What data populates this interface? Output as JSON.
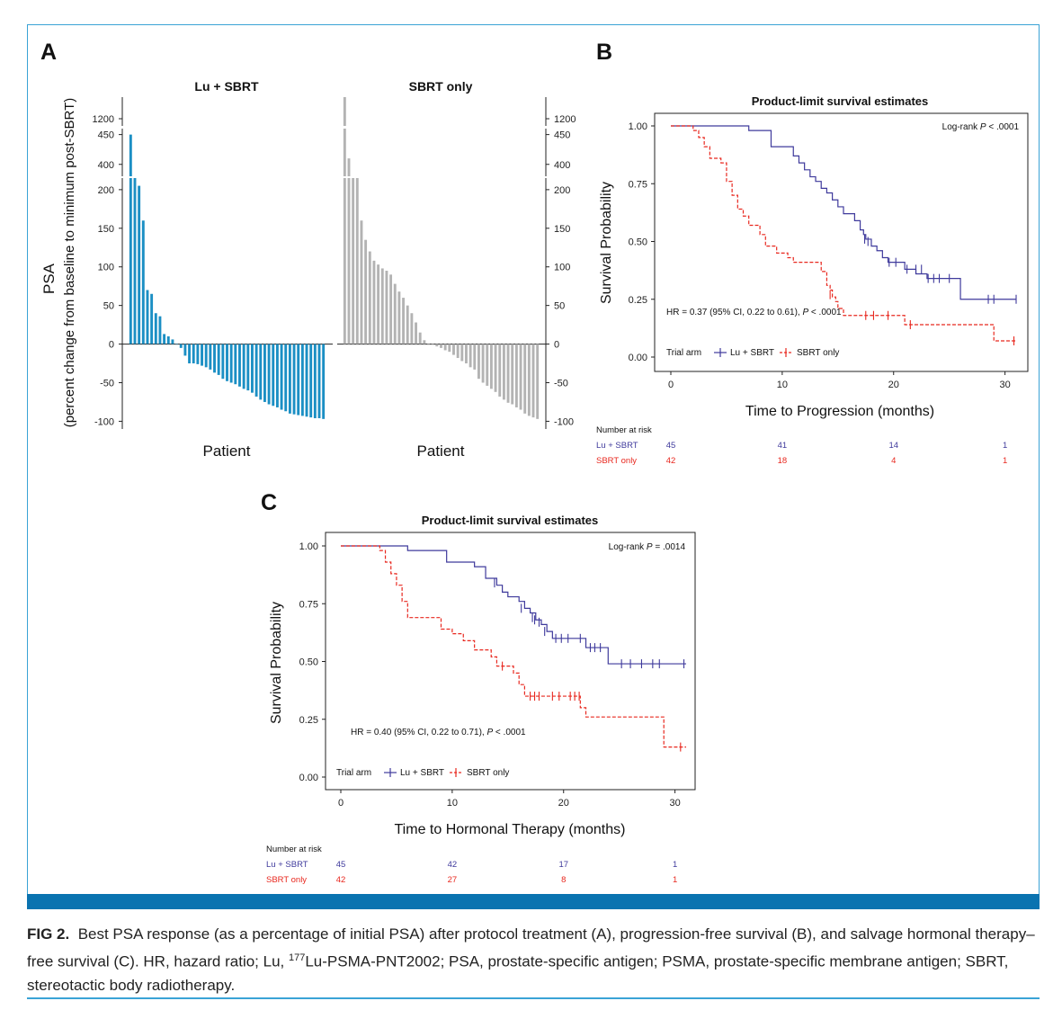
{
  "figure": {
    "panel_a_letter": "A",
    "panel_b_letter": "B",
    "panel_c_letter": "C",
    "caption_label": "FIG 2.",
    "caption_text_1": "Best PSA response (as a percentage of initial PSA) after protocol treatment (A), progression-free survival (B), and salvage hormonal therapy–free survival (C). HR, hazard ratio; Lu, ",
    "caption_sup": "177",
    "caption_text_2": "Lu-PSMA-PNT2002; PSA, prostate-specific antigen; PSMA, prostate-specific membrane antigen; SBRT, stereotactic body radiotherapy.",
    "colors": {
      "frame": "#3aa3d6",
      "band": "#0a73b0",
      "lu_bar": "#1b8fc4",
      "sbrt_bar": "#b3b3b3",
      "lu_line": "#3f3a9c",
      "sbrt_line": "#e8281f"
    }
  },
  "chart_data": [
    {
      "type": "bar",
      "panel": "A",
      "ylabel": "PSA",
      "ylabel_sub": "(percent change from baseline to minimum post-SBRT)",
      "xlabel": "Patient",
      "ylim_lower": [
        -110,
        215
      ],
      "ylim_upper": [
        380,
        460
      ],
      "ylim_top": [
        1180,
        1260
      ],
      "yticks": [
        -100,
        -50,
        0,
        50,
        100,
        150,
        200
      ],
      "yticks_upper": [
        400,
        450
      ],
      "yticks_top": [
        1200
      ],
      "series": [
        {
          "name": "Lu + SBRT",
          "values": [
            450,
            215,
            205,
            160,
            70,
            65,
            40,
            36,
            13,
            10,
            6,
            0,
            -5,
            -15,
            -25,
            -25,
            -26,
            -28,
            -30,
            -33,
            -37,
            -40,
            -45,
            -48,
            -50,
            -52,
            -55,
            -58,
            -60,
            -63,
            -68,
            -72,
            -75,
            -78,
            -80,
            -82,
            -85,
            -87,
            -90,
            -91,
            -92,
            -93,
            -94,
            -95,
            -96,
            -96,
            -97
          ]
        },
        {
          "name": "SBRT only",
          "values": [
            1270,
            410,
            215,
            215,
            160,
            135,
            120,
            108,
            103,
            98,
            95,
            90,
            78,
            68,
            60,
            50,
            40,
            28,
            15,
            5,
            0,
            0,
            -3,
            -5,
            -8,
            -10,
            -14,
            -18,
            -22,
            -25,
            -30,
            -33,
            -45,
            -50,
            -54,
            -58,
            -62,
            -68,
            -72,
            -76,
            -78,
            -82,
            -85,
            -90,
            -93,
            -95,
            -97
          ]
        }
      ]
    },
    {
      "type": "line",
      "panel": "B",
      "title": "Product-limit survival estimates",
      "xlabel": "Time to Progression (months)",
      "ylabel": "Survival Probability",
      "xlim": [
        0,
        31
      ],
      "ylim": [
        0,
        1
      ],
      "xticks": [
        0,
        10,
        20,
        30
      ],
      "yticks": [
        "0.00",
        "0.25",
        "0.50",
        "0.75",
        "1.00"
      ],
      "logrank_label": "Log-rank ",
      "logrank_p": "P",
      "logrank_value": " < .0001",
      "hr_text_1": "HR = 0.37 (95% CI, 0.22 to 0.61), ",
      "hr_p": "P",
      "hr_text_2": " < .0001",
      "legend_title": "Trial arm",
      "risk_title": "Number at risk",
      "series": [
        {
          "name": "Lu + SBRT",
          "steps": [
            [
              0,
              1
            ],
            [
              7,
              0.98
            ],
            [
              9,
              0.91
            ],
            [
              11,
              0.87
            ],
            [
              11.5,
              0.84
            ],
            [
              12,
              0.81
            ],
            [
              12.5,
              0.78
            ],
            [
              13,
              0.76
            ],
            [
              13.5,
              0.73
            ],
            [
              14,
              0.71
            ],
            [
              14.5,
              0.68
            ],
            [
              15,
              0.65
            ],
            [
              15.5,
              0.62
            ],
            [
              16.5,
              0.59
            ],
            [
              17,
              0.55
            ],
            [
              17.3,
              0.53
            ],
            [
              17.5,
              0.51
            ],
            [
              18,
              0.48
            ],
            [
              18.5,
              0.46
            ],
            [
              19,
              0.43
            ],
            [
              19.5,
              0.41
            ],
            [
              21,
              0.38
            ],
            [
              22,
              0.36
            ],
            [
              23,
              0.34
            ],
            [
              26,
              0.25
            ],
            [
              31,
              0.25
            ]
          ],
          "censors": [
            [
              17.4,
              0.51
            ],
            [
              17.7,
              0.5
            ],
            [
              19.6,
              0.41
            ],
            [
              20.2,
              0.41
            ],
            [
              21.2,
              0.38
            ],
            [
              22,
              0.38
            ],
            [
              22.5,
              0.38
            ],
            [
              23.1,
              0.34
            ],
            [
              23.6,
              0.34
            ],
            [
              24.1,
              0.34
            ],
            [
              25,
              0.34
            ],
            [
              28.5,
              0.25
            ],
            [
              29,
              0.25
            ],
            [
              31,
              0.25
            ]
          ],
          "risk": [
            45,
            41,
            14,
            1
          ]
        },
        {
          "name": "SBRT only",
          "steps": [
            [
              0,
              1
            ],
            [
              2,
              0.98
            ],
            [
              2.5,
              0.95
            ],
            [
              3,
              0.91
            ],
            [
              3.5,
              0.86
            ],
            [
              4.5,
              0.84
            ],
            [
              5,
              0.76
            ],
            [
              5.5,
              0.7
            ],
            [
              6,
              0.64
            ],
            [
              6.5,
              0.61
            ],
            [
              7,
              0.57
            ],
            [
              8,
              0.53
            ],
            [
              8.5,
              0.48
            ],
            [
              9.5,
              0.45
            ],
            [
              10.5,
              0.43
            ],
            [
              11,
              0.41
            ],
            [
              13.5,
              0.37
            ],
            [
              14,
              0.31
            ],
            [
              14.3,
              0.29
            ],
            [
              14.5,
              0.26
            ],
            [
              14.8,
              0.24
            ],
            [
              15,
              0.21
            ],
            [
              15.5,
              0.18
            ],
            [
              21,
              0.14
            ],
            [
              29,
              0.07
            ],
            [
              31,
              0.07
            ]
          ],
          "censors": [
            [
              14.3,
              0.27
            ],
            [
              17.5,
              0.18
            ],
            [
              18.2,
              0.18
            ],
            [
              19.5,
              0.18
            ],
            [
              21.5,
              0.14
            ],
            [
              30.8,
              0.07
            ]
          ],
          "risk": [
            42,
            18,
            4,
            1
          ]
        }
      ]
    },
    {
      "type": "line",
      "panel": "C",
      "title": "Product-limit survival estimates",
      "xlabel": "Time to Hormonal Therapy (months)",
      "ylabel": "Survival Probability",
      "xlim": [
        0,
        31
      ],
      "ylim": [
        0,
        1
      ],
      "xticks": [
        0,
        10,
        20,
        30
      ],
      "yticks": [
        "0.00",
        "0.25",
        "0.50",
        "0.75",
        "1.00"
      ],
      "logrank_label": "Log-rank ",
      "logrank_p": "P",
      "logrank_value": " = .0014",
      "hr_text_1": "HR = 0.40 (95% CI, 0.22 to 0.71), ",
      "hr_p": "P",
      "hr_text_2": " < .0001",
      "legend_title": "Trial arm",
      "risk_title": "Number at risk",
      "series": [
        {
          "name": "Lu + SBRT",
          "steps": [
            [
              0,
              1
            ],
            [
              6,
              0.98
            ],
            [
              9.5,
              0.93
            ],
            [
              12,
              0.91
            ],
            [
              13,
              0.86
            ],
            [
              14,
              0.83
            ],
            [
              14.5,
              0.8
            ],
            [
              15,
              0.78
            ],
            [
              16,
              0.76
            ],
            [
              16.5,
              0.73
            ],
            [
              17,
              0.71
            ],
            [
              17.5,
              0.68
            ],
            [
              18,
              0.66
            ],
            [
              18.5,
              0.63
            ],
            [
              19,
              0.6
            ],
            [
              21,
              0.6
            ],
            [
              22,
              0.56
            ],
            [
              24,
              0.49
            ],
            [
              31,
              0.49
            ]
          ],
          "censors": [
            [
              13.8,
              0.84
            ],
            [
              16.2,
              0.73
            ],
            [
              17.2,
              0.69
            ],
            [
              17.4,
              0.68
            ],
            [
              17.8,
              0.67
            ],
            [
              18.3,
              0.63
            ],
            [
              19.3,
              0.6
            ],
            [
              19.8,
              0.6
            ],
            [
              20.4,
              0.6
            ],
            [
              21.5,
              0.6
            ],
            [
              22.4,
              0.56
            ],
            [
              22.8,
              0.56
            ],
            [
              23.3,
              0.56
            ],
            [
              25.2,
              0.49
            ],
            [
              26,
              0.49
            ],
            [
              27,
              0.49
            ],
            [
              28,
              0.49
            ],
            [
              28.6,
              0.49
            ],
            [
              30.8,
              0.49
            ]
          ],
          "risk": [
            45,
            42,
            17,
            1
          ]
        },
        {
          "name": "SBRT only",
          "steps": [
            [
              0,
              1
            ],
            [
              3.5,
              0.98
            ],
            [
              4,
              0.93
            ],
            [
              4.5,
              0.88
            ],
            [
              5,
              0.83
            ],
            [
              5.5,
              0.76
            ],
            [
              6,
              0.69
            ],
            [
              9,
              0.64
            ],
            [
              10,
              0.62
            ],
            [
              11,
              0.59
            ],
            [
              12,
              0.55
            ],
            [
              13.5,
              0.52
            ],
            [
              14,
              0.48
            ],
            [
              15.5,
              0.45
            ],
            [
              16,
              0.4
            ],
            [
              16.5,
              0.35
            ],
            [
              21.5,
              0.3
            ],
            [
              22,
              0.26
            ],
            [
              29,
              0.13
            ],
            [
              31,
              0.13
            ]
          ],
          "censors": [
            [
              14.5,
              0.48
            ],
            [
              17,
              0.35
            ],
            [
              17.4,
              0.35
            ],
            [
              17.8,
              0.35
            ],
            [
              19,
              0.35
            ],
            [
              19.6,
              0.35
            ],
            [
              20.6,
              0.35
            ],
            [
              21.0,
              0.35
            ],
            [
              21.4,
              0.35
            ],
            [
              30.5,
              0.13
            ]
          ],
          "risk": [
            42,
            27,
            8,
            1
          ]
        }
      ]
    }
  ]
}
